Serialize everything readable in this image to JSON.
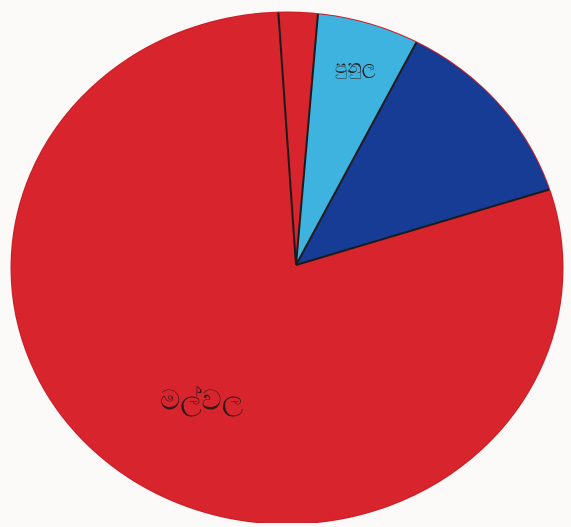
{
  "chart_data": {
    "type": "pie",
    "title": "",
    "slices": [
      {
        "label": "",
        "value": 2.5,
        "color": "#d8242c"
      },
      {
        "label": "පුනුල",
        "value": 6.5,
        "color": "#3fb3df"
      },
      {
        "label": "",
        "value": 12.5,
        "color": "#163c96"
      },
      {
        "label": "මල්වල",
        "value": 78.5,
        "color": "#d8242c"
      }
    ],
    "start_angle_deg": -4,
    "direction": "clockwise",
    "edge_color": "#1b1b1b",
    "legend": "none"
  }
}
